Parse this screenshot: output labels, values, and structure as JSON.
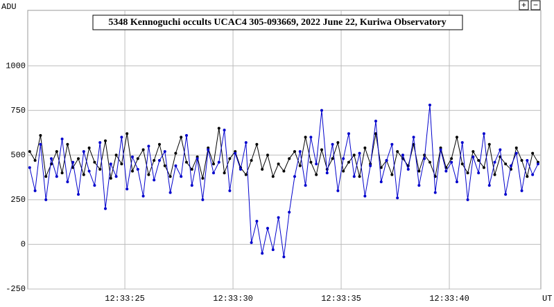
{
  "chart_data": {
    "type": "line",
    "title": "5348 Kennoguchi occults UCAC4 305-093669, 2022 June 22, Kuriwa Observatory",
    "ylabel": "ADU",
    "xlabel": "UT",
    "x": [
      20.6,
      20.85,
      21.1,
      21.35,
      21.6,
      21.85,
      22.1,
      22.35,
      22.6,
      22.85,
      23.1,
      23.35,
      23.6,
      23.85,
      24.1,
      24.35,
      24.6,
      24.85,
      25.1,
      25.35,
      25.6,
      25.85,
      26.1,
      26.35,
      26.6,
      26.85,
      27.1,
      27.35,
      27.6,
      27.85,
      28.1,
      28.35,
      28.6,
      28.85,
      29.1,
      29.35,
      29.6,
      29.85,
      30.1,
      30.35,
      30.6,
      30.85,
      31.1,
      31.35,
      31.6,
      31.85,
      32.1,
      32.35,
      32.6,
      32.85,
      33.1,
      33.35,
      33.6,
      33.85,
      34.1,
      34.35,
      34.6,
      34.85,
      35.1,
      35.35,
      35.6,
      35.85,
      36.1,
      36.35,
      36.6,
      36.85,
      37.1,
      37.35,
      37.6,
      37.85,
      38.1,
      38.35,
      38.6,
      38.85,
      39.1,
      39.35,
      39.6,
      39.85,
      40.1,
      40.35,
      40.6,
      40.85,
      41.1,
      41.35,
      41.6,
      41.85,
      42.1,
      42.35,
      42.6,
      42.85,
      43.1,
      43.35,
      43.6,
      43.85,
      44.1
    ],
    "series": [
      {
        "color": "#000000",
        "values": [
          520,
          470,
          610,
          380,
          450,
          520,
          400,
          560,
          430,
          480,
          390,
          540,
          460,
          420,
          580,
          370,
          500,
          450,
          620,
          410,
          480,
          530,
          390,
          470,
          560,
          440,
          380,
          510,
          600,
          460,
          420,
          490,
          370,
          540,
          450,
          650,
          400,
          480,
          520,
          430,
          390,
          470,
          560,
          420,
          500,
          380,
          450,
          410,
          480,
          520,
          440,
          600,
          460,
          390,
          530,
          420,
          480,
          570,
          410,
          460,
          500,
          380,
          540,
          450,
          620,
          430,
          470,
          390,
          520,
          480,
          440,
          560,
          410,
          500,
          460,
          380,
          540,
          430,
          480,
          600,
          450,
          400,
          520,
          470,
          430,
          560,
          390,
          490,
          450,
          420,
          540,
          470,
          380,
          510,
          460
        ]
      },
      {
        "color": "#0000cc",
        "values": [
          430,
          300,
          560,
          250,
          480,
          380,
          590,
          350,
          460,
          280,
          520,
          410,
          330,
          570,
          200,
          450,
          380,
          600,
          310,
          490,
          420,
          270,
          550,
          360,
          470,
          520,
          290,
          440,
          380,
          610,
          330,
          480,
          250,
          530,
          400,
          460,
          640,
          300,
          510,
          420,
          570,
          10,
          130,
          -50,
          90,
          -30,
          150,
          -70,
          180,
          380,
          520,
          330,
          600,
          450,
          750,
          400,
          560,
          300,
          480,
          620,
          380,
          510,
          270,
          440,
          690,
          350,
          470,
          560,
          260,
          500,
          420,
          600,
          330,
          480,
          780,
          290,
          530,
          410,
          460,
          350,
          570,
          250,
          490,
          400,
          620,
          330,
          460,
          530,
          280,
          440,
          510,
          300,
          470,
          390,
          450
        ]
      }
    ],
    "xlim": [
      20.51,
      44.23
    ],
    "xticks": [
      {
        "value": 25,
        "label": "12:33:25"
      },
      {
        "value": 30,
        "label": "12:33:30"
      },
      {
        "value": 35,
        "label": "12:33:35"
      },
      {
        "value": 40,
        "label": "12:33:40"
      }
    ],
    "ylim": [
      -250,
      1310
    ],
    "yticks": [
      -250,
      0,
      250,
      500,
      750,
      1000
    ],
    "grid": true
  },
  "controls": [
    "+",
    "−"
  ]
}
